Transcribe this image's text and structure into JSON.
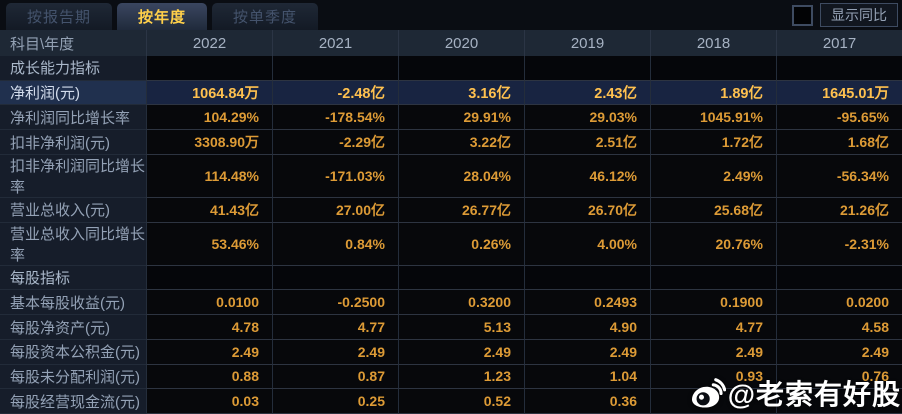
{
  "tabs": [
    {
      "label": "按报告期",
      "active": false
    },
    {
      "label": "按年度",
      "active": true
    },
    {
      "label": "按单季度",
      "active": false
    }
  ],
  "controls": {
    "show_yoy_label": "显示同比",
    "checkbox_checked": false
  },
  "table": {
    "corner_label": "科目\\年度",
    "columns": [
      "2022",
      "2021",
      "2020",
      "2019",
      "2018",
      "2017"
    ],
    "more_label": "»",
    "rows": [
      {
        "type": "section",
        "label": "成长能力指标",
        "values": [
          "",
          "",
          "",
          "",
          "",
          ""
        ]
      },
      {
        "type": "highlight",
        "label": "净利润(元)",
        "values": [
          "1064.84万",
          "-2.48亿",
          "3.16亿",
          "2.43亿",
          "1.89亿",
          "1645.01万"
        ]
      },
      {
        "type": "normal",
        "label": "净利润同比增长率",
        "values": [
          "104.29%",
          "-178.54%",
          "29.91%",
          "29.03%",
          "1045.91%",
          "-95.65%"
        ]
      },
      {
        "type": "normal",
        "label": "扣非净利润(元)",
        "values": [
          "3308.90万",
          "-2.29亿",
          "3.22亿",
          "2.51亿",
          "1.72亿",
          "1.68亿"
        ]
      },
      {
        "type": "normal",
        "label": "扣非净利润同比增长率",
        "values": [
          "114.48%",
          "-171.03%",
          "28.04%",
          "46.12%",
          "2.49%",
          "-56.34%"
        ]
      },
      {
        "type": "normal",
        "label": "营业总收入(元)",
        "values": [
          "41.43亿",
          "27.00亿",
          "26.77亿",
          "26.70亿",
          "25.68亿",
          "21.26亿"
        ]
      },
      {
        "type": "normal",
        "label": "营业总收入同比增长率",
        "values": [
          "53.46%",
          "0.84%",
          "0.26%",
          "4.00%",
          "20.76%",
          "-2.31%"
        ]
      },
      {
        "type": "section",
        "label": "每股指标",
        "values": [
          "",
          "",
          "",
          "",
          "",
          ""
        ]
      },
      {
        "type": "normal",
        "label": "基本每股收益(元)",
        "values": [
          "0.0100",
          "-0.2500",
          "0.3200",
          "0.2493",
          "0.1900",
          "0.0200"
        ]
      },
      {
        "type": "normal",
        "label": "每股净资产(元)",
        "values": [
          "4.78",
          "4.77",
          "5.13",
          "4.90",
          "4.77",
          "4.58"
        ]
      },
      {
        "type": "normal",
        "label": "每股资本公积金(元)",
        "values": [
          "2.49",
          "2.49",
          "2.49",
          "2.49",
          "2.49",
          "2.49"
        ]
      },
      {
        "type": "normal",
        "label": "每股未分配利润(元)",
        "values": [
          "0.88",
          "0.87",
          "1.23",
          "1.04",
          "0.93",
          "0.76"
        ]
      },
      {
        "type": "normal",
        "label": "每股经营现金流(元)",
        "values": [
          "0.03",
          "0.25",
          "0.52",
          "0.36",
          "",
          ""
        ]
      }
    ]
  },
  "watermark": {
    "text": "@老索有好股",
    "icon": "weibo-icon"
  },
  "colors": {
    "accent_gold": "#ffd04a",
    "value_orange": "#dd9b36",
    "highlight_row_bg": "#182441",
    "header_bg": "#1e2835",
    "label_col_bg": "#161d2a"
  }
}
